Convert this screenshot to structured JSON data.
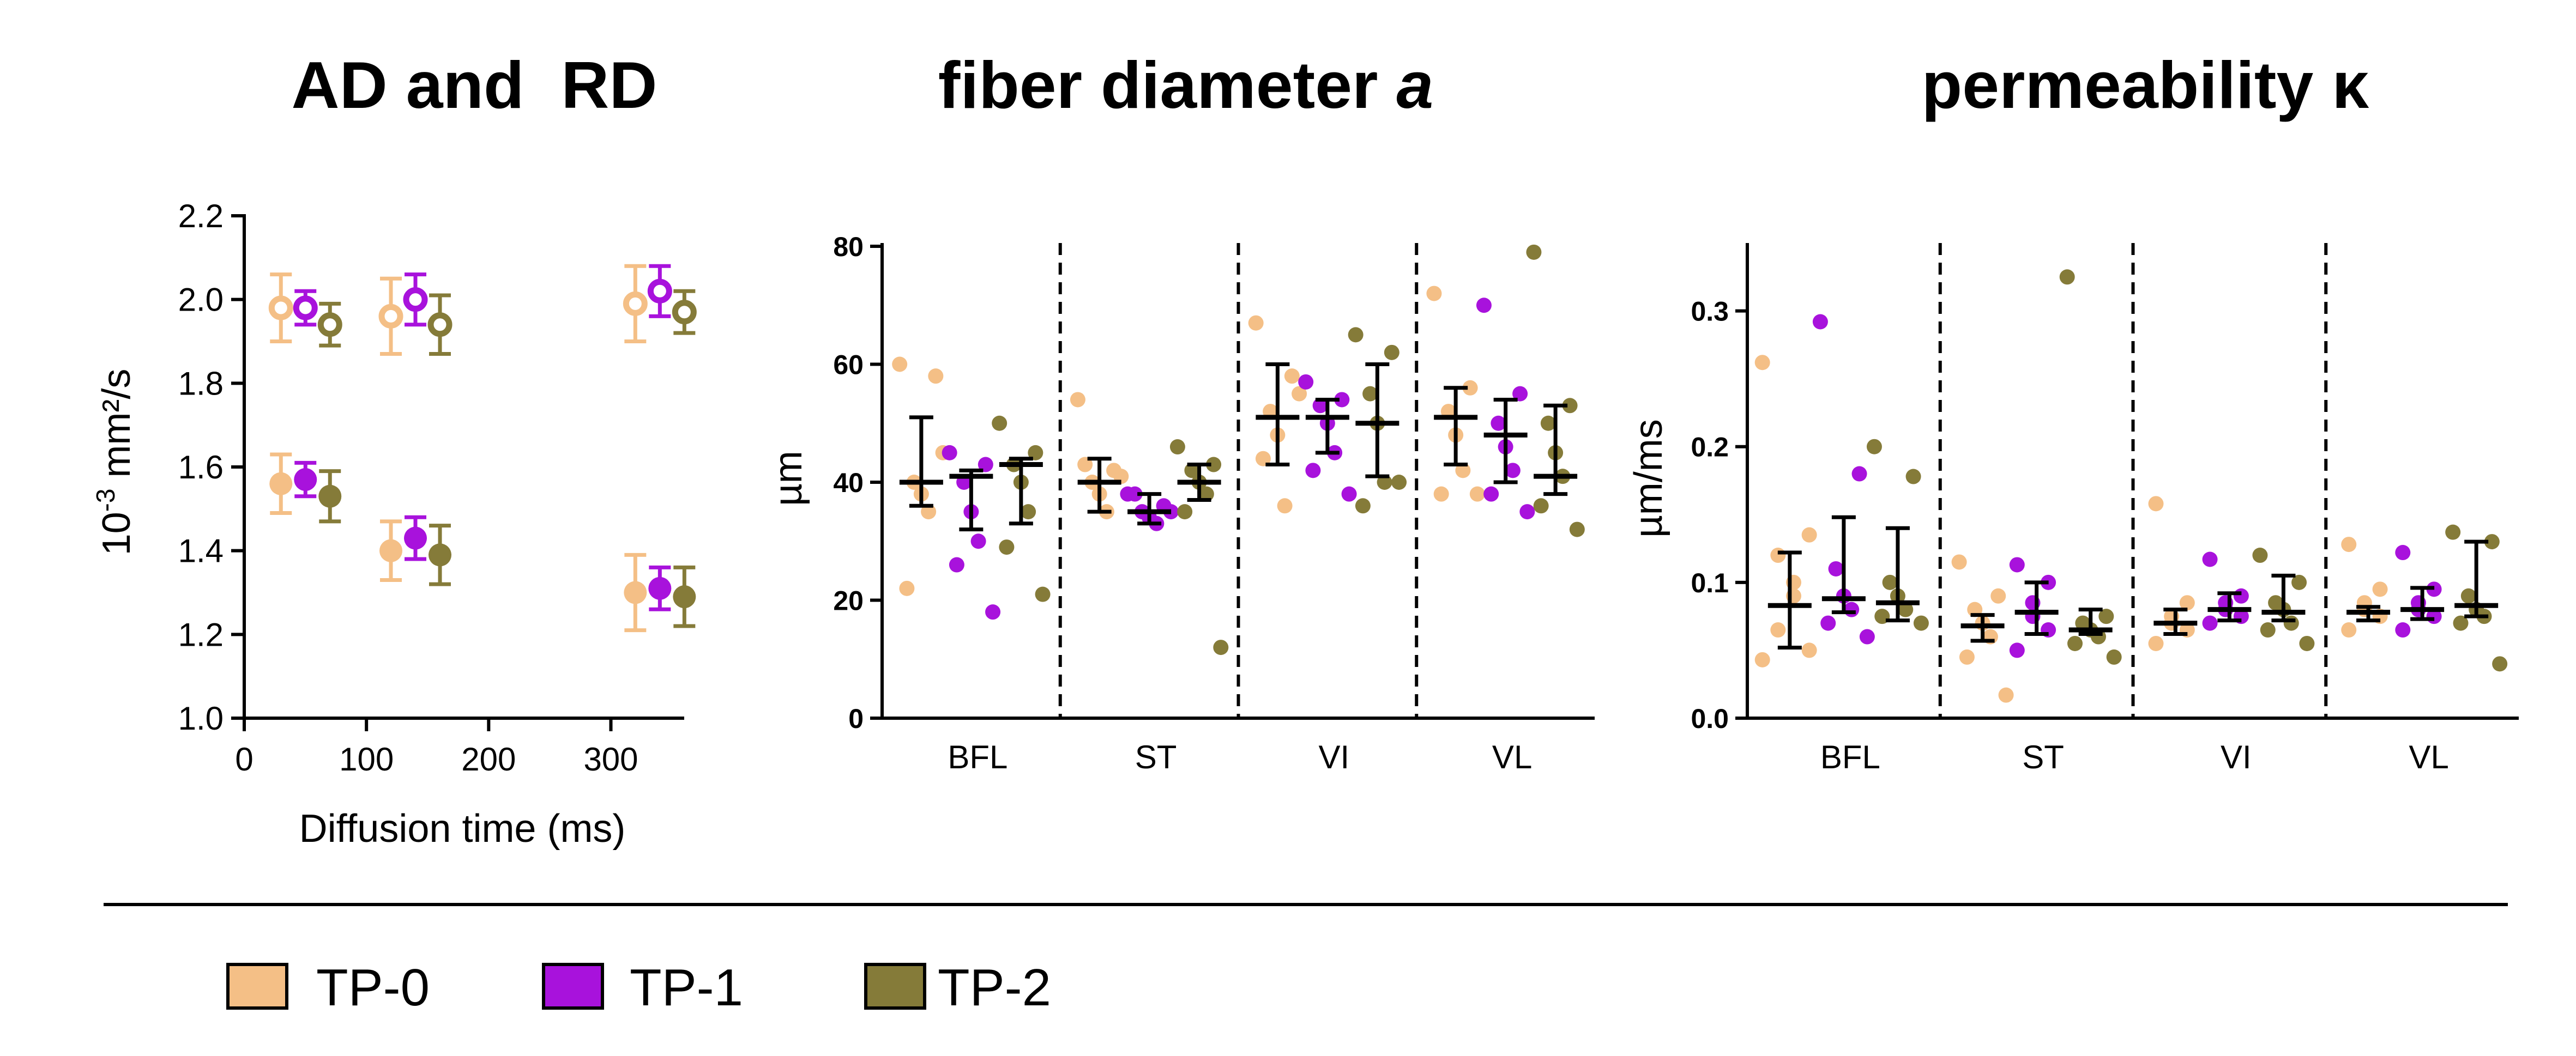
{
  "chart_data": [
    {
      "type": "scatter",
      "title": "AD and  RD",
      "xlabel": "Diffusion time (ms)",
      "ylabel_main": "10",
      "ylabel_sup": "-3",
      "ylabel_unit": " mm²/s",
      "xlim": [
        0,
        360
      ],
      "ylim": [
        1.0,
        2.2
      ],
      "xticks": [
        0,
        100,
        200,
        300
      ],
      "yticks": [
        "1.0",
        "1.2",
        "1.4",
        "1.6",
        "1.8",
        "2.0",
        "2.2"
      ],
      "x": [
        30,
        120,
        320
      ],
      "series": [
        {
          "name": "TP-0",
          "AD": {
            "mean": [
              1.98,
              1.96,
              1.99
            ],
            "err": [
              0.08,
              0.09,
              0.09
            ]
          },
          "RD": {
            "mean": [
              1.56,
              1.4,
              1.3
            ],
            "err": [
              0.07,
              0.07,
              0.09
            ]
          }
        },
        {
          "name": "TP-1",
          "AD": {
            "mean": [
              1.98,
              2.0,
              2.02
            ],
            "err": [
              0.04,
              0.06,
              0.06
            ]
          },
          "RD": {
            "mean": [
              1.57,
              1.43,
              1.31
            ],
            "err": [
              0.04,
              0.05,
              0.05
            ]
          }
        },
        {
          "name": "TP-2",
          "AD": {
            "mean": [
              1.94,
              1.94,
              1.97
            ],
            "err": [
              0.05,
              0.07,
              0.05
            ]
          },
          "RD": {
            "mean": [
              1.53,
              1.39,
              1.29
            ],
            "err": [
              0.06,
              0.07,
              0.07
            ]
          }
        }
      ]
    },
    {
      "type": "scatter",
      "title_main": "fiber diameter ",
      "title_italic": "a",
      "ylabel": "µm",
      "ylim": [
        0,
        80
      ],
      "yticks": [
        "0",
        "20",
        "40",
        "60",
        "80"
      ],
      "categories": [
        "BFL",
        "ST",
        "VI",
        "VL"
      ],
      "series": [
        {
          "name": "TP-0",
          "points": [
            [
              60,
              58,
              40,
              38,
              35,
              22,
              45
            ],
            [
              54,
              42,
              40,
              38,
              35,
              43,
              41
            ],
            [
              67,
              58,
              52,
              48,
              36,
              44,
              55
            ],
            [
              72,
              56,
              52,
              48,
              42,
              38,
              38
            ]
          ],
          "median": [
            40,
            40,
            51,
            51
          ],
          "q1": [
            36,
            35,
            43,
            43
          ],
          "q3": [
            51,
            44,
            60,
            56
          ]
        },
        {
          "name": "TP-1",
          "points": [
            [
              45,
              43,
              40,
              35,
              30,
              26,
              18
            ],
            [
              38,
              36,
              35,
              34,
              33,
              38,
              35
            ],
            [
              57,
              54,
              53,
              50,
              45,
              42,
              38
            ],
            [
              70,
              55,
              50,
              46,
              42,
              38,
              35
            ]
          ],
          "median": [
            41,
            35,
            51,
            48
          ],
          "q1": [
            32,
            33,
            45,
            40
          ],
          "q3": [
            42,
            38,
            54,
            54
          ]
        },
        {
          "name": "TP-2",
          "points": [
            [
              50,
              45,
              43,
              40,
              35,
              29,
              21
            ],
            [
              46,
              43,
              42,
              40,
              38,
              35,
              12
            ],
            [
              65,
              62,
              55,
              50,
              40,
              36,
              40
            ],
            [
              79,
              53,
              50,
              45,
              41,
              36,
              32
            ]
          ],
          "median": [
            43,
            40,
            50,
            41
          ],
          "q1": [
            33,
            37,
            41,
            38
          ],
          "q3": [
            44,
            43,
            60,
            53
          ]
        }
      ]
    },
    {
      "type": "scatter",
      "title": "permeability κ",
      "ylabel": "µm/ms",
      "ylim": [
        0,
        0.35
      ],
      "yticks": [
        "0.0",
        "0.1",
        "0.2",
        "0.3"
      ],
      "categories": [
        "BFL",
        "ST",
        "VI",
        "VL"
      ],
      "series": [
        {
          "name": "TP-0",
          "points": [
            [
              0.262,
              0.135,
              0.12,
              0.1,
              0.09,
              0.065,
              0.05,
              0.043
            ],
            [
              0.115,
              0.09,
              0.08,
              0.07,
              0.06,
              0.045,
              0.017
            ],
            [
              0.158,
              0.085,
              0.075,
              0.07,
              0.065,
              0.055
            ],
            [
              0.128,
              0.095,
              0.085,
              0.08,
              0.075,
              0.065
            ]
          ],
          "median": [
            0.083,
            0.068,
            0.07,
            0.078
          ],
          "q1": [
            0.052,
            0.057,
            0.062,
            0.072
          ],
          "q3": [
            0.122,
            0.076,
            0.08,
            0.082
          ]
        },
        {
          "name": "TP-1",
          "points": [
            [
              0.292,
              0.18,
              0.11,
              0.09,
              0.08,
              0.07,
              0.06
            ],
            [
              0.113,
              0.1,
              0.085,
              0.075,
              0.065,
              0.05
            ],
            [
              0.117,
              0.09,
              0.085,
              0.08,
              0.075,
              0.07
            ],
            [
              0.122,
              0.095,
              0.085,
              0.08,
              0.075,
              0.065
            ]
          ],
          "median": [
            0.088,
            0.078,
            0.08,
            0.08
          ],
          "q1": [
            0.078,
            0.062,
            0.072,
            0.073
          ],
          "q3": [
            0.148,
            0.1,
            0.092,
            0.096
          ]
        },
        {
          "name": "TP-2",
          "points": [
            [
              0.2,
              0.178,
              0.1,
              0.09,
              0.08,
              0.075,
              0.07
            ],
            [
              0.325,
              0.075,
              0.07,
              0.065,
              0.06,
              0.055,
              0.045
            ],
            [
              0.12,
              0.1,
              0.085,
              0.08,
              0.07,
              0.065,
              0.055
            ],
            [
              0.137,
              0.13,
              0.09,
              0.08,
              0.075,
              0.07,
              0.04
            ]
          ],
          "median": [
            0.085,
            0.065,
            0.078,
            0.083
          ],
          "q1": [
            0.072,
            0.062,
            0.072,
            0.075
          ],
          "q3": [
            0.14,
            0.08,
            0.105,
            0.13
          ]
        }
      ]
    }
  ],
  "legend": [
    {
      "label": "TP-0",
      "color": "#f4bf86"
    },
    {
      "label": "TP-1",
      "color": "#a812dc"
    },
    {
      "label": "TP-2",
      "color": "#857b39"
    }
  ],
  "colors": {
    "TP-0": "#f4bf86",
    "TP-1": "#a812dc",
    "TP-2": "#857b39",
    "stats": "#000000"
  }
}
